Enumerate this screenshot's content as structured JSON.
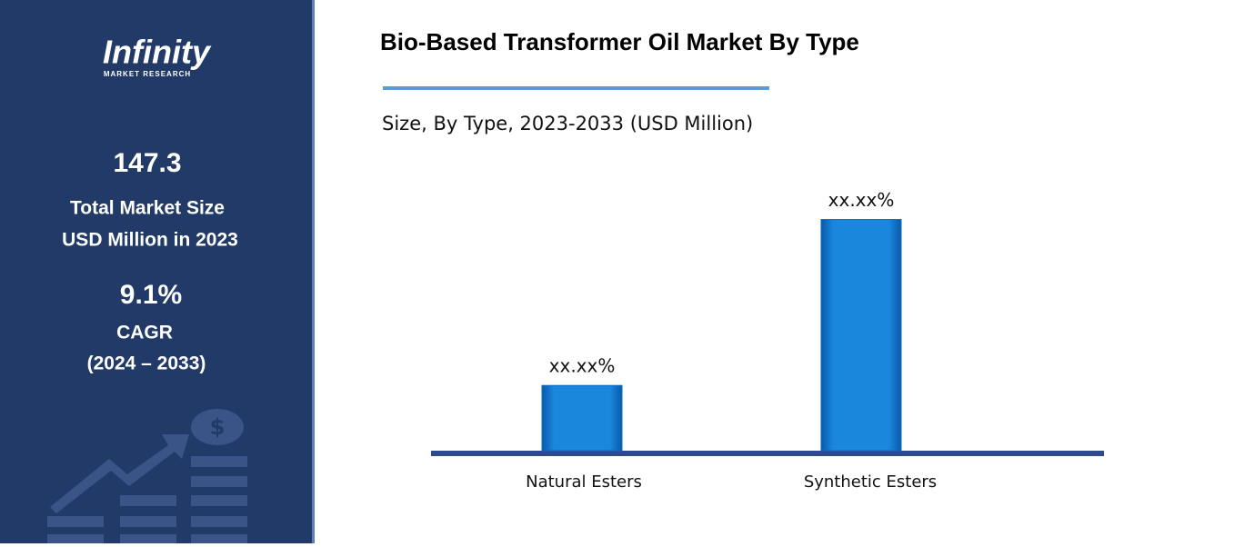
{
  "sidebar": {
    "logo": "Infinity",
    "logo_sub": "MARKET RESEARCH",
    "market_size": 147.3,
    "market_size_line1": "Total Market Size",
    "market_size_line2": "USD Million in 2023",
    "cagr": "9.1%",
    "cagr_label": "CAGR",
    "cagr_period": "(2024 – 2033)"
  },
  "chart_data": {
    "type": "bar",
    "title": "Bio-Based Transformer Oil Market By Type",
    "subtitle": "Size, By Type, 2023-2033 (USD Million)",
    "categories": [
      "Natural Esters",
      "Synthetic Esters"
    ],
    "values": [
      22,
      78
    ],
    "value_labels": [
      "xx.xx%",
      "xx.xx%"
    ],
    "color": "#0a6fc2",
    "ylim": [
      0,
      80
    ]
  }
}
